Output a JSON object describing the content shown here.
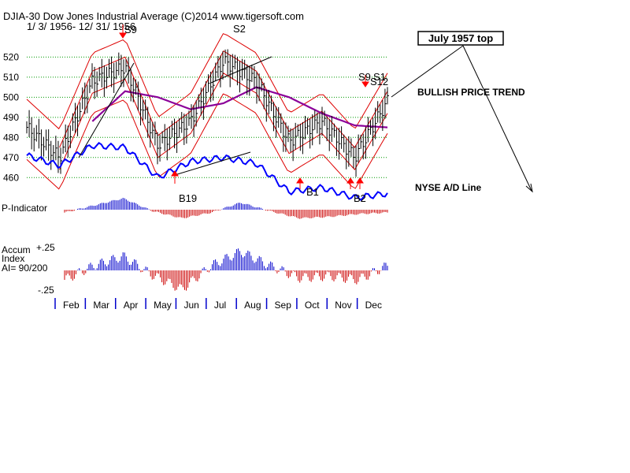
{
  "header": {
    "title": "DJIA-30  Dow Jones Industrial Average   (C)2014 www.tigersoft.com",
    "date_range": "1/ 3/ 1956- 12/ 31/ 1956"
  },
  "annotations": {
    "callout_box": "July 1957 top",
    "bullish_trend": "BULLISH PRICE TREND",
    "ad_line_label": "NYSE A/D Line",
    "signals": {
      "s9_apr": "S9",
      "s2_jul": "S2",
      "b19": "B19",
      "b1": "B1",
      "b2": "B2",
      "s9_dec": "S9",
      "s1_dec": "S1",
      "s12_dec": "S12"
    }
  },
  "panels": {
    "p_indicator_label": "P-Indicator",
    "accum_label_1": "Accum",
    "accum_label_2": "Index",
    "accum_label_3": "AI= 90/200",
    "accum_top": "+.25",
    "accum_bottom": "-.25"
  },
  "colors": {
    "price_bars": "#000000",
    "bands": "#dd0000",
    "moving_avg": "#8b0099",
    "ad_line": "#0000ff",
    "positive_hist": "#0000cc",
    "negative_hist": "#cc0000",
    "grid": "#009900"
  },
  "chart_data": {
    "type": "line",
    "title": "DJIA-30  Dow Jones Industrial Average",
    "period": "1956",
    "y_ticks": [
      520,
      510,
      500,
      490,
      480,
      470,
      460
    ],
    "ylim": [
      455,
      528
    ],
    "x_tick_labels": [
      "Feb",
      "Mar",
      "Apr",
      "May",
      "Jun",
      "Jul",
      "Aug",
      "Sep",
      "Oct",
      "Nov",
      "Dec"
    ],
    "x": [
      "Jan",
      "Feb",
      "Mar",
      "Apr",
      "May",
      "Jun",
      "Jul",
      "Aug",
      "Sep",
      "Oct",
      "Nov",
      "Dec"
    ],
    "series": [
      {
        "values": [
          485,
          470,
          508,
          515,
          476,
          488,
          518,
          508,
          478,
          488,
          470,
          498
        ]
      },
      {
        "values": [
          471,
          466,
          476,
          475,
          460,
          468,
          470,
          467,
          453,
          455,
          450,
          452
        ]
      },
      {
        "values": [
          null,
          null,
          488,
          503,
          500,
          494,
          497,
          505,
          500,
          492,
          486,
          485
        ]
      }
    ],
    "signals": [
      {
        "label": "S9",
        "month": "Apr",
        "type": "sell"
      },
      {
        "label": "B19",
        "month": "Jun",
        "type": "buy"
      },
      {
        "label": "S2",
        "month": "Jul",
        "type": "sell"
      },
      {
        "label": "B1",
        "month": "Oct",
        "type": "buy"
      },
      {
        "label": "B2",
        "month": "Nov",
        "type": "buy"
      },
      {
        "label": "S9",
        "month": "Dec",
        "type": "sell"
      },
      {
        "label": "S1",
        "month": "Dec",
        "type": "sell"
      },
      {
        "label": "S12",
        "month": "Dec",
        "type": "sell"
      }
    ],
    "p_indicator": {
      "values": [
        -0.2,
        0.3,
        0.8,
        -0.1,
        -0.6,
        -0.2,
        0.5,
        -0.1,
        -0.6,
        -0.5,
        -0.3,
        -0.2
      ],
      "labels": [
        "P-Indicator"
      ]
    },
    "accum_index": {
      "ylim": [
        -0.25,
        0.25
      ],
      "values": [
        -0.1,
        0.05,
        0.15,
        -0.05,
        -0.2,
        0.05,
        0.2,
        0.05,
        -0.08,
        -0.06,
        -0.1,
        0.05
      ]
    }
  }
}
